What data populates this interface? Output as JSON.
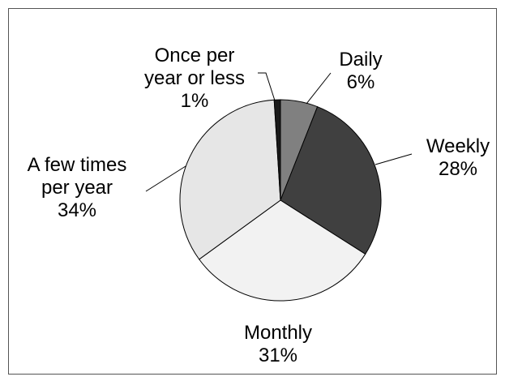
{
  "chart_data": {
    "type": "pie",
    "categories": [
      "Daily",
      "Weekly",
      "Monthly",
      "A few times\nper year",
      "Once per\nyear or less"
    ],
    "values": [
      6,
      28,
      31,
      34,
      1
    ],
    "value_labels": [
      "6%",
      "28%",
      "31%",
      "34%",
      "1%"
    ],
    "colors": [
      "#808080",
      "#404040",
      "#f2f2f2",
      "#e6e6e6",
      "#1a1a1a"
    ]
  }
}
